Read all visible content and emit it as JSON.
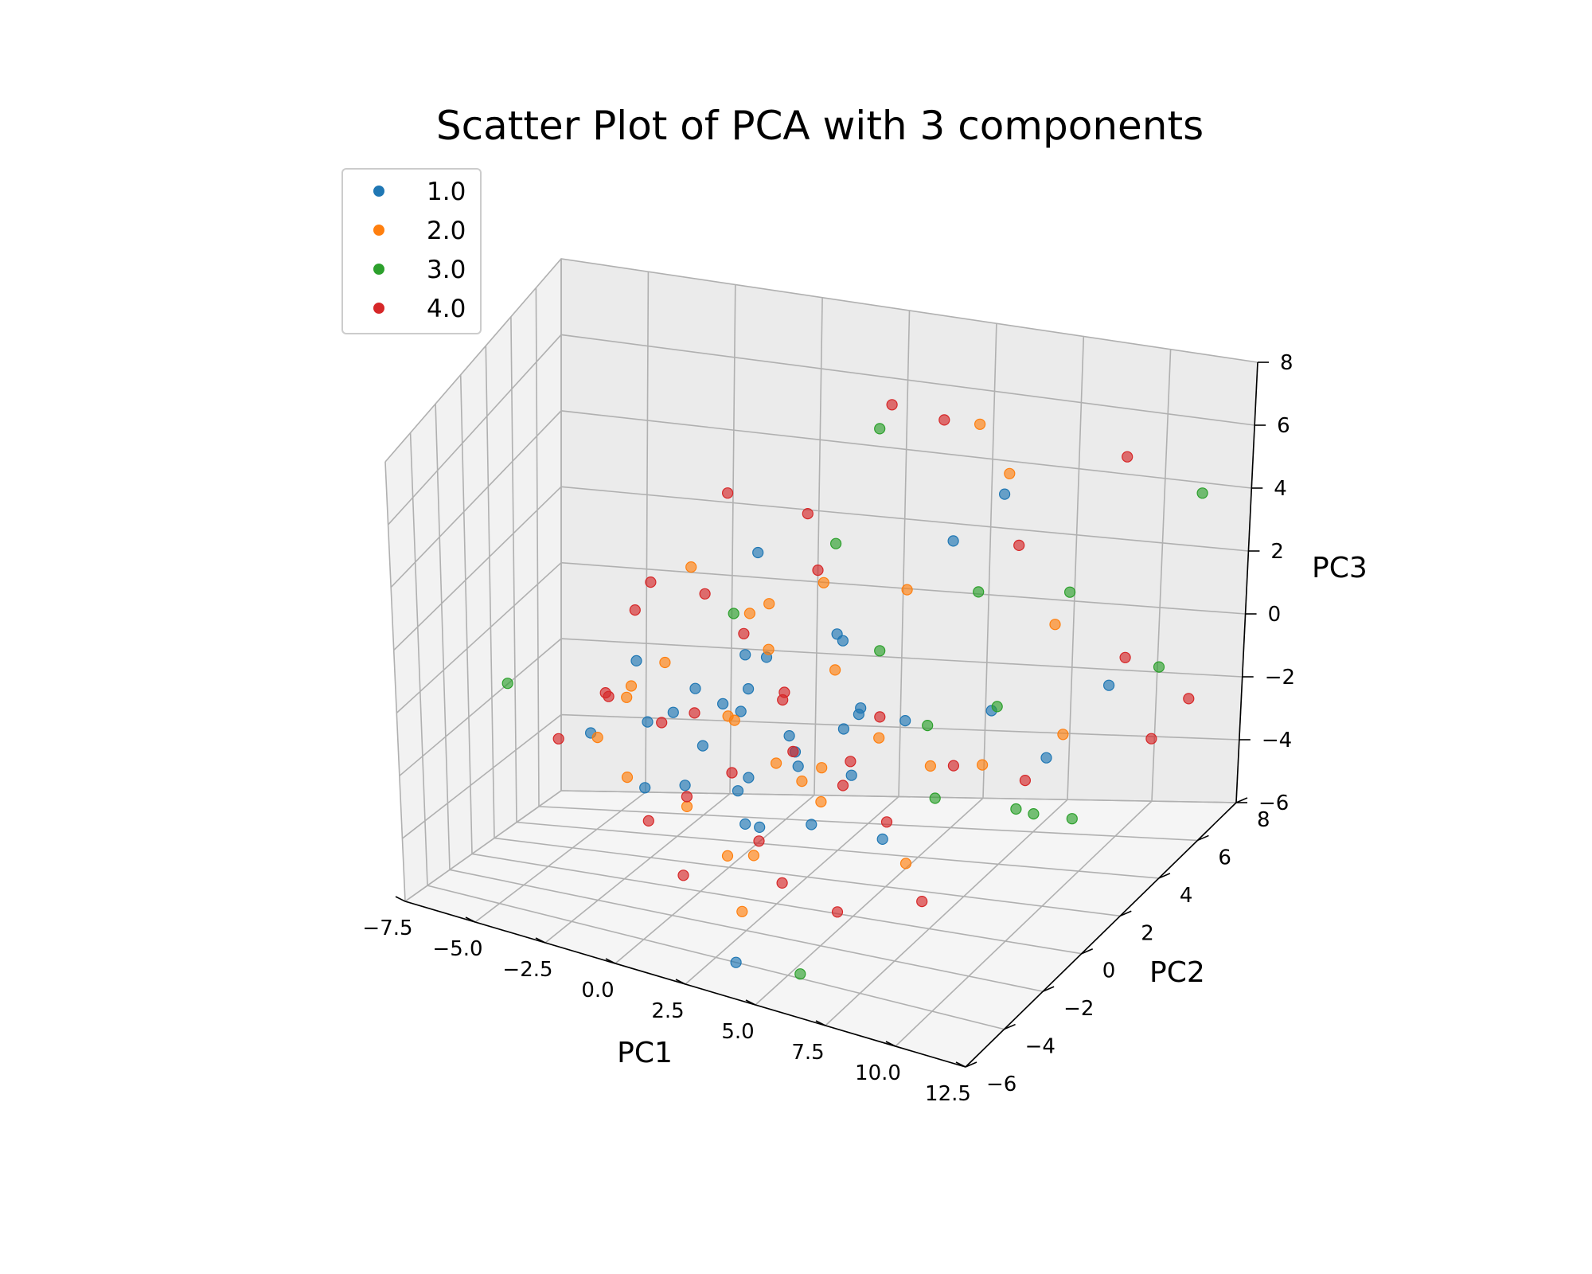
{
  "chart_data": {
    "type": "scatter",
    "projection": "3d",
    "title": "Scatter Plot of PCA with 3 components",
    "xlabel": "PC1",
    "ylabel": "PC2",
    "zlabel": "PC3",
    "xlim": [
      -7.5,
      12.5
    ],
    "ylim": [
      -6,
      8
    ],
    "zlim": [
      -6,
      8
    ],
    "xticks": [
      -7.5,
      -5.0,
      -2.5,
      0.0,
      2.5,
      5.0,
      7.5,
      10.0,
      12.5
    ],
    "yticks": [
      -6,
      -4,
      -2,
      0,
      2,
      4,
      6,
      8
    ],
    "zticks": [
      -6,
      -4,
      -2,
      0,
      2,
      4,
      6,
      8
    ],
    "xtick_labels": [
      "−7.5",
      "−5.0",
      "−2.5",
      "0.0",
      "2.5",
      "5.0",
      "7.5",
      "10.0",
      "12.5"
    ],
    "ytick_labels": [
      "−6",
      "−4",
      "−2",
      "0",
      "2",
      "4",
      "6",
      "8"
    ],
    "ztick_labels": [
      "−6",
      "−4",
      "−2",
      "0",
      "2",
      "4",
      "6",
      "8"
    ],
    "grid": true,
    "legend_position": "top-left",
    "series": [
      {
        "name": "1.0",
        "color": "#1f77b4",
        "points": [
          [
            0.5,
            -0.8,
            -1.2
          ],
          [
            1.2,
            0.3,
            -0.5
          ],
          [
            2.0,
            -1.5,
            -2.0
          ],
          [
            -0.5,
            0.8,
            -0.3
          ],
          [
            3.1,
            0.2,
            -1.8
          ],
          [
            1.8,
            -0.4,
            0.6
          ],
          [
            0.0,
            1.6,
            -1.0
          ],
          [
            2.6,
            -2.2,
            -2.6
          ],
          [
            4.2,
            0.9,
            -0.8
          ],
          [
            -1.4,
            -0.6,
            -0.9
          ],
          [
            1.0,
            2.4,
            0.2
          ],
          [
            3.5,
            -1.1,
            -0.2
          ],
          [
            5.1,
            -0.3,
            -1.5
          ],
          [
            0.8,
            -2.6,
            -1.6
          ],
          [
            -2.2,
            0.4,
            0.4
          ],
          [
            2.2,
            1.8,
            -2.2
          ],
          [
            6.0,
            1.2,
            -0.4
          ],
          [
            4.6,
            -1.8,
            -2.4
          ],
          [
            1.5,
            0.0,
            1.4
          ],
          [
            -0.9,
            -1.9,
            -2.3
          ],
          [
            3.8,
            2.6,
            -1.2
          ],
          [
            2.9,
            3.0,
            0.9
          ],
          [
            7.4,
            3.6,
            -1.1
          ],
          [
            8.8,
            4.2,
            -2.7
          ],
          [
            9.6,
            6.1,
            -1.4
          ],
          [
            5.5,
            4.8,
            3.2
          ],
          [
            6.8,
            5.2,
            4.6
          ],
          [
            3.2,
            -4.0,
            -6.0
          ],
          [
            0.3,
            3.3,
            2.8
          ],
          [
            4.9,
            0.6,
            0.1
          ],
          [
            -1.8,
            2.1,
            -1.7
          ],
          [
            2.4,
            -0.9,
            -3.3
          ],
          [
            1.1,
            1.0,
            -2.8
          ],
          [
            6.4,
            -0.8,
            -3.0
          ],
          [
            -3.0,
            -1.2,
            -1.3
          ],
          [
            3.9,
            1.4,
            1.6
          ]
        ]
      },
      {
        "name": "2.0",
        "color": "#ff7f0e",
        "points": [
          [
            0.9,
            0.5,
            -0.9
          ],
          [
            -1.0,
            -0.2,
            0.8
          ],
          [
            2.8,
            -0.6,
            -1.4
          ],
          [
            1.6,
            1.3,
            1.0
          ],
          [
            -2.6,
            0.9,
            -0.6
          ],
          [
            4.0,
            -0.1,
            -2.6
          ],
          [
            0.2,
            -1.3,
            -2.9
          ],
          [
            3.4,
            1.9,
            0.4
          ],
          [
            -0.3,
            2.6,
            -1.8
          ],
          [
            5.6,
            0.4,
            -0.6
          ],
          [
            2.1,
            -2.4,
            -3.6
          ],
          [
            -1.7,
            -1.4,
            0.1
          ],
          [
            6.6,
            1.6,
            -1.9
          ],
          [
            1.3,
            0.7,
            2.3
          ],
          [
            4.4,
            -2.0,
            -1.0
          ],
          [
            -3.4,
            0.2,
            -2.0
          ],
          [
            0.6,
            3.4,
            1.3
          ],
          [
            3.0,
            -3.2,
            -4.8
          ],
          [
            7.8,
            2.4,
            -2.1
          ],
          [
            5.0,
            3.1,
            2.5
          ],
          [
            -0.8,
            1.2,
            3.1
          ],
          [
            2.5,
            2.9,
            -3.1
          ],
          [
            8.2,
            5.6,
            0.6
          ],
          [
            9.4,
            4.0,
            -1.8
          ],
          [
            6.1,
            6.8,
            4.3
          ],
          [
            4.8,
            7.6,
            5.2
          ],
          [
            7.0,
            -0.5,
            -3.8
          ],
          [
            1.9,
            -0.3,
            -4.5
          ],
          [
            -2.0,
            -0.8,
            -2.6
          ],
          [
            3.6,
            0.8,
            3.6
          ]
        ]
      },
      {
        "name": "3.0",
        "color": "#2ca02c",
        "points": [
          [
            -5.8,
            -1.0,
            -0.4
          ],
          [
            4.8,
            1.9,
            1.2
          ],
          [
            7.9,
            3.0,
            -0.6
          ],
          [
            9.0,
            2.2,
            -3.2
          ],
          [
            6.5,
            4.4,
            2.0
          ],
          [
            2.7,
            5.9,
            5.6
          ],
          [
            10.8,
            6.6,
            -1.0
          ],
          [
            10.2,
            3.2,
            -3.9
          ],
          [
            5.2,
            -3.6,
            -6.1
          ],
          [
            3.3,
            2.1,
            4.1
          ],
          [
            8.4,
            6.0,
            1.4
          ],
          [
            11.2,
            7.8,
            3.8
          ],
          [
            7.2,
            0.8,
            -2.4
          ],
          [
            1.7,
            -1.1,
            3.2
          ],
          [
            9.9,
            1.6,
            -2.9
          ],
          [
            5.9,
            2.7,
            -1.3
          ]
        ]
      },
      {
        "name": "4.0",
        "color": "#d62728",
        "points": [
          [
            -0.2,
            0.1,
            -0.7
          ],
          [
            1.4,
            -0.7,
            -1.9
          ],
          [
            -1.5,
            0.6,
            -1.4
          ],
          [
            2.3,
            0.9,
            0.0
          ],
          [
            0.4,
            -1.7,
            -2.4
          ],
          [
            3.3,
            -0.5,
            -1.0
          ],
          [
            -2.8,
            -0.3,
            -0.5
          ],
          [
            1.7,
            2.0,
            -0.8
          ],
          [
            -0.6,
            -2.3,
            -3.1
          ],
          [
            4.5,
            0.3,
            -2.2
          ],
          [
            0.1,
            2.8,
            0.6
          ],
          [
            2.9,
            -1.9,
            -3.2
          ],
          [
            -3.6,
            1.3,
            -1.1
          ],
          [
            5.3,
            1.0,
            -0.3
          ],
          [
            -1.2,
            3.0,
            1.5
          ],
          [
            3.7,
            2.3,
            -2.5
          ],
          [
            -4.2,
            -0.9,
            -1.8
          ],
          [
            6.2,
            -0.2,
            -2.8
          ],
          [
            0.9,
            -3.0,
            -4.2
          ],
          [
            2.0,
            3.6,
            2.4
          ],
          [
            -2.4,
            1.9,
            2.1
          ],
          [
            4.1,
            -2.7,
            -3.9
          ],
          [
            7.5,
            1.3,
            -1.6
          ],
          [
            8.6,
            3.4,
            -3.0
          ],
          [
            6.9,
            5.9,
            2.7
          ],
          [
            4.3,
            6.5,
            5.8
          ],
          [
            11.6,
            4.9,
            -2.2
          ],
          [
            12.0,
            6.1,
            -1.6
          ],
          [
            9.2,
            7.4,
            4.9
          ],
          [
            3.0,
            6.0,
            6.3
          ],
          [
            -1.0,
            4.1,
            4.0
          ],
          [
            8.0,
            -1.3,
            -4.4
          ],
          [
            5.8,
            -2.4,
            -4.6
          ],
          [
            1.2,
            4.6,
            3.5
          ],
          [
            -3.2,
            2.6,
            0.9
          ],
          [
            10.5,
            5.3,
            0.0
          ]
        ]
      }
    ]
  }
}
